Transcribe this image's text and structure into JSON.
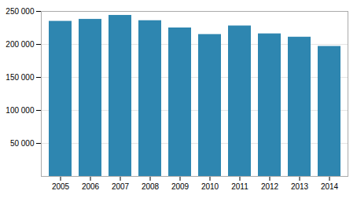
{
  "chart_data": {
    "type": "bar",
    "categories": [
      "2005",
      "2006",
      "2007",
      "2008",
      "2009",
      "2010",
      "2011",
      "2012",
      "2013",
      "2014"
    ],
    "values": [
      235000,
      238000,
      244000,
      236000,
      225000,
      215000,
      228000,
      216000,
      211000,
      197000
    ],
    "color": "#2e86b0",
    "ylim": [
      0,
      250000
    ],
    "yticks": [
      {
        "value": 50000,
        "label": "50 000"
      },
      {
        "value": 100000,
        "label": "100 000"
      },
      {
        "value": 150000,
        "label": "150 000"
      },
      {
        "value": 200000,
        "label": "200 000"
      },
      {
        "value": 250000,
        "label": "250 000"
      }
    ],
    "grid": true
  }
}
